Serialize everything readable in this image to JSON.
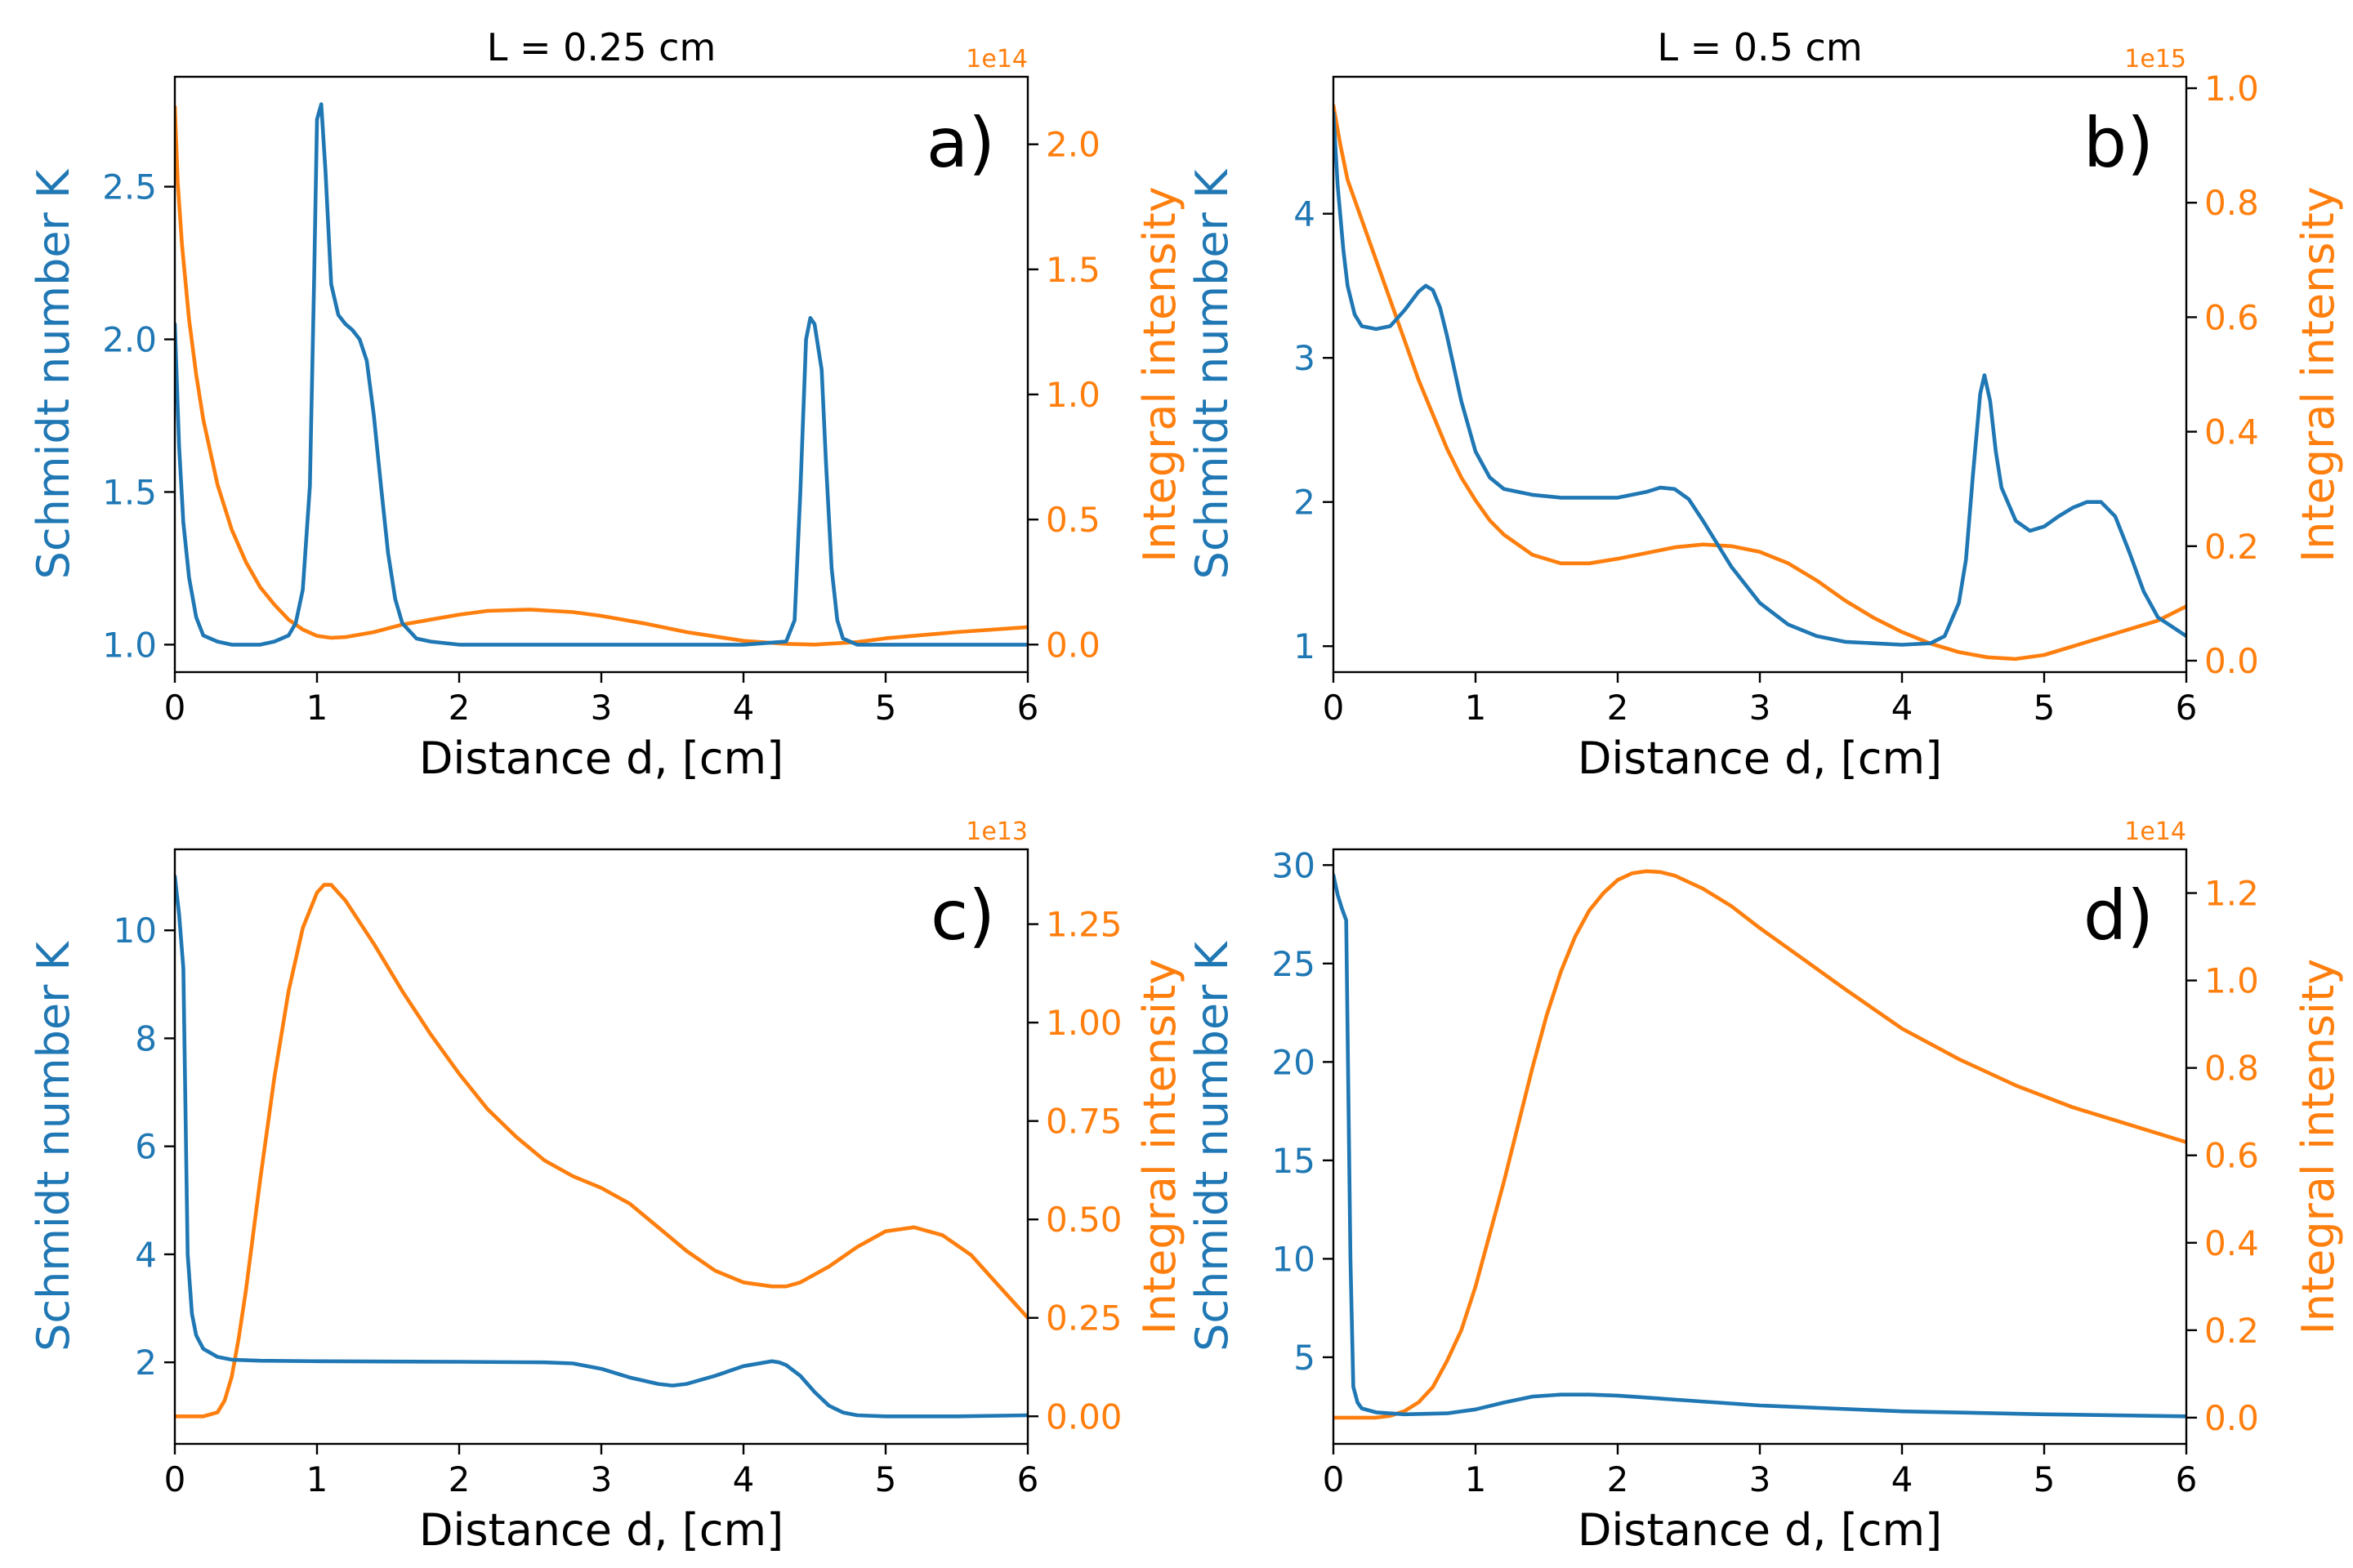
{
  "colors": {
    "schmidt": "#1f77b4",
    "intensity": "#ff7f0e",
    "axis": "#000000"
  },
  "chart_data": [
    {
      "type": "line",
      "panel_label": "a)",
      "title": "L = 0.25 cm",
      "xlabel": "Distance d, [cm]",
      "ylabel_left": "Schmidt number K",
      "ylabel_right": "Integral intensity",
      "right_multiplier": "1e14",
      "xlim": [
        0,
        6
      ],
      "ylim_left": [
        0.91,
        2.86
      ],
      "ylim_right": [
        -0.11,
        2.27
      ],
      "xticks": [
        0,
        1,
        2,
        3,
        4,
        5,
        6
      ],
      "xtick_labels": [
        "0",
        "1",
        "2",
        "3",
        "4",
        "5",
        "6"
      ],
      "yticks_left": [
        1.0,
        1.5,
        2.0,
        2.5
      ],
      "ytick_labels_left": [
        "1.0",
        "1.5",
        "2.0",
        "2.5"
      ],
      "yticks_right": [
        0.0,
        0.5,
        1.0,
        1.5,
        2.0
      ],
      "ytick_labels_right": [
        "0.0",
        "0.5",
        "1.0",
        "1.5",
        "2.0"
      ],
      "series": [
        {
          "name": "Schmidt number K",
          "axis": "left",
          "x": [
            0,
            0.03,
            0.06,
            0.1,
            0.15,
            0.2,
            0.3,
            0.4,
            0.5,
            0.6,
            0.7,
            0.8,
            0.85,
            0.9,
            0.95,
            0.98,
            1.0,
            1.03,
            1.06,
            1.1,
            1.15,
            1.2,
            1.25,
            1.3,
            1.35,
            1.4,
            1.45,
            1.5,
            1.55,
            1.6,
            1.7,
            1.8,
            2.0,
            3.0,
            4.0,
            4.3,
            4.36,
            4.4,
            4.44,
            4.47,
            4.5,
            4.55,
            4.58,
            4.62,
            4.66,
            4.7,
            4.8,
            5.0,
            6.0
          ],
          "y": [
            2.05,
            1.65,
            1.4,
            1.22,
            1.09,
            1.03,
            1.01,
            1.0,
            1.0,
            1.0,
            1.01,
            1.03,
            1.07,
            1.18,
            1.52,
            2.2,
            2.72,
            2.77,
            2.55,
            2.18,
            2.08,
            2.05,
            2.03,
            2.0,
            1.93,
            1.75,
            1.52,
            1.3,
            1.15,
            1.07,
            1.02,
            1.01,
            1.0,
            1.0,
            1.0,
            1.01,
            1.08,
            1.5,
            2.0,
            2.07,
            2.05,
            1.9,
            1.6,
            1.25,
            1.08,
            1.02,
            1.0,
            1.0,
            1.0
          ]
        },
        {
          "name": "Integral intensity",
          "axis": "right",
          "x": [
            0,
            0.02,
            0.05,
            0.1,
            0.15,
            0.2,
            0.3,
            0.4,
            0.5,
            0.6,
            0.7,
            0.8,
            0.9,
            1.0,
            1.1,
            1.2,
            1.4,
            1.6,
            1.8,
            2.0,
            2.2,
            2.5,
            2.8,
            3.0,
            3.3,
            3.6,
            4.0,
            4.3,
            4.5,
            4.8,
            5.0,
            5.5,
            6.0
          ],
          "y": [
            2.15,
            1.85,
            1.6,
            1.3,
            1.08,
            0.9,
            0.64,
            0.46,
            0.33,
            0.23,
            0.16,
            0.1,
            0.06,
            0.035,
            0.027,
            0.03,
            0.05,
            0.08,
            0.1,
            0.12,
            0.135,
            0.14,
            0.13,
            0.115,
            0.085,
            0.05,
            0.015,
            0.003,
            0.0,
            0.01,
            0.025,
            0.05,
            0.07
          ]
        }
      ]
    },
    {
      "type": "line",
      "panel_label": "b)",
      "title": "L = 0.5 cm",
      "xlabel": "Distance d, [cm]",
      "ylabel_left": "Schmidt number K",
      "ylabel_right": "Integral intensity",
      "right_multiplier": "1e15",
      "xlim": [
        0,
        6
      ],
      "ylim_left": [
        0.82,
        4.95
      ],
      "ylim_right": [
        -0.02,
        1.02
      ],
      "xticks": [
        0,
        1,
        2,
        3,
        4,
        5,
        6
      ],
      "xtick_labels": [
        "0",
        "1",
        "2",
        "3",
        "4",
        "5",
        "6"
      ],
      "yticks_left": [
        1,
        2,
        3,
        4
      ],
      "ytick_labels_left": [
        "1",
        "2",
        "3",
        "4"
      ],
      "yticks_right": [
        0.0,
        0.2,
        0.4,
        0.6,
        0.8,
        1.0
      ],
      "ytick_labels_right": [
        "0.0",
        "0.2",
        "0.4",
        "0.6",
        "0.8",
        "1.0"
      ],
      "series": [
        {
          "name": "Schmidt number K",
          "axis": "left",
          "x": [
            0,
            0.03,
            0.07,
            0.1,
            0.15,
            0.2,
            0.3,
            0.4,
            0.5,
            0.6,
            0.65,
            0.7,
            0.75,
            0.8,
            0.9,
            1.0,
            1.1,
            1.2,
            1.4,
            1.6,
            1.8,
            2.0,
            2.2,
            2.3,
            2.4,
            2.5,
            2.6,
            2.8,
            3.0,
            3.2,
            3.4,
            3.6,
            3.8,
            4.0,
            4.2,
            4.3,
            4.4,
            4.45,
            4.5,
            4.55,
            4.58,
            4.62,
            4.66,
            4.7,
            4.8,
            4.9,
            5.0,
            5.1,
            5.2,
            5.3,
            5.4,
            5.5,
            5.6,
            5.7,
            5.8,
            6.0
          ],
          "y": [
            4.7,
            4.2,
            3.75,
            3.5,
            3.3,
            3.22,
            3.2,
            3.22,
            3.33,
            3.46,
            3.5,
            3.47,
            3.35,
            3.15,
            2.7,
            2.35,
            2.17,
            2.09,
            2.05,
            2.03,
            2.03,
            2.03,
            2.07,
            2.1,
            2.09,
            2.02,
            1.87,
            1.55,
            1.3,
            1.15,
            1.07,
            1.03,
            1.02,
            1.01,
            1.02,
            1.07,
            1.3,
            1.6,
            2.2,
            2.75,
            2.88,
            2.7,
            2.35,
            2.1,
            1.87,
            1.8,
            1.83,
            1.9,
            1.96,
            2.0,
            2.0,
            1.9,
            1.65,
            1.38,
            1.2,
            1.07
          ]
        },
        {
          "name": "Integral intensity",
          "axis": "right",
          "x": [
            0,
            0.05,
            0.1,
            0.2,
            0.3,
            0.4,
            0.5,
            0.6,
            0.7,
            0.8,
            0.9,
            1.0,
            1.1,
            1.2,
            1.4,
            1.6,
            1.8,
            2.0,
            2.2,
            2.4,
            2.6,
            2.8,
            3.0,
            3.2,
            3.4,
            3.6,
            3.8,
            4.0,
            4.2,
            4.4,
            4.6,
            4.8,
            5.0,
            5.2,
            5.4,
            5.6,
            5.8,
            6.0
          ],
          "y": [
            0.97,
            0.9,
            0.84,
            0.77,
            0.7,
            0.63,
            0.56,
            0.49,
            0.43,
            0.37,
            0.32,
            0.28,
            0.245,
            0.22,
            0.185,
            0.17,
            0.17,
            0.178,
            0.188,
            0.198,
            0.203,
            0.2,
            0.19,
            0.17,
            0.14,
            0.105,
            0.075,
            0.05,
            0.03,
            0.015,
            0.006,
            0.003,
            0.01,
            0.025,
            0.04,
            0.055,
            0.07,
            0.095
          ]
        }
      ]
    },
    {
      "type": "line",
      "panel_label": "c)",
      "title": "",
      "xlabel": "Distance d, [cm]",
      "ylabel_left": "Schmidt number K",
      "ylabel_right": "Integral intensity",
      "right_multiplier": "1e13",
      "xlim": [
        0,
        6
      ],
      "ylim_left": [
        0.49,
        11.5
      ],
      "ylim_right": [
        -0.07,
        1.44
      ],
      "xticks": [
        0,
        1,
        2,
        3,
        4,
        5,
        6
      ],
      "xtick_labels": [
        "0",
        "1",
        "2",
        "3",
        "4",
        "5",
        "6"
      ],
      "yticks_left": [
        2,
        4,
        6,
        8,
        10
      ],
      "ytick_labels_left": [
        "2",
        "4",
        "6",
        "8",
        "10"
      ],
      "yticks_right": [
        0.0,
        0.25,
        0.5,
        0.75,
        1.0,
        1.25
      ],
      "ytick_labels_right": [
        "0.00",
        "0.25",
        "0.50",
        "0.75",
        "1.00",
        "1.25"
      ],
      "series": [
        {
          "name": "Schmidt number K",
          "axis": "left",
          "x": [
            0,
            0.03,
            0.06,
            0.09,
            0.12,
            0.15,
            0.2,
            0.3,
            0.4,
            0.6,
            1.0,
            2.0,
            2.6,
            2.8,
            3.0,
            3.2,
            3.4,
            3.5,
            3.6,
            3.8,
            4.0,
            4.2,
            4.25,
            4.3,
            4.4,
            4.5,
            4.6,
            4.7,
            4.8,
            5.0,
            5.5,
            6.0
          ],
          "y": [
            11.0,
            10.3,
            9.3,
            4.0,
            2.9,
            2.5,
            2.25,
            2.1,
            2.05,
            2.03,
            2.02,
            2.01,
            2.0,
            1.98,
            1.88,
            1.72,
            1.6,
            1.57,
            1.6,
            1.75,
            1.93,
            2.02,
            2.0,
            1.95,
            1.75,
            1.45,
            1.2,
            1.07,
            1.02,
            1.0,
            1.0,
            1.02
          ]
        },
        {
          "name": "Integral intensity",
          "axis": "right",
          "x": [
            0,
            0.1,
            0.2,
            0.3,
            0.35,
            0.4,
            0.45,
            0.5,
            0.6,
            0.7,
            0.8,
            0.9,
            1.0,
            1.05,
            1.1,
            1.2,
            1.4,
            1.6,
            1.8,
            2.0,
            2.2,
            2.4,
            2.6,
            2.8,
            3.0,
            3.2,
            3.4,
            3.6,
            3.8,
            4.0,
            4.2,
            4.3,
            4.4,
            4.6,
            4.8,
            5.0,
            5.2,
            5.4,
            5.6,
            5.8,
            6.0
          ],
          "y": [
            0.0,
            0.0,
            0.0,
            0.01,
            0.04,
            0.1,
            0.2,
            0.32,
            0.6,
            0.86,
            1.08,
            1.24,
            1.33,
            1.35,
            1.35,
            1.31,
            1.2,
            1.08,
            0.97,
            0.87,
            0.78,
            0.71,
            0.65,
            0.61,
            0.58,
            0.54,
            0.48,
            0.42,
            0.37,
            0.34,
            0.33,
            0.33,
            0.34,
            0.38,
            0.43,
            0.47,
            0.48,
            0.46,
            0.41,
            0.33,
            0.25
          ]
        }
      ]
    },
    {
      "type": "line",
      "panel_label": "d)",
      "title": "",
      "xlabel": "Distance d, [cm]",
      "ylabel_left": "Schmidt number K",
      "ylabel_right": "Integral intensity",
      "right_multiplier": "1e14",
      "xlim": [
        0,
        6
      ],
      "ylim_left": [
        0.6,
        30.8
      ],
      "ylim_right": [
        -0.06,
        1.3
      ],
      "xticks": [
        0,
        1,
        2,
        3,
        4,
        5,
        6
      ],
      "xtick_labels": [
        "0",
        "1",
        "2",
        "3",
        "4",
        "5",
        "6"
      ],
      "yticks_left": [
        5,
        10,
        15,
        20,
        25,
        30
      ],
      "ytick_labels_left": [
        "5",
        "10",
        "15",
        "20",
        "25",
        "30"
      ],
      "yticks_right": [
        0.0,
        0.2,
        0.4,
        0.6,
        0.8,
        1.0,
        1.2
      ],
      "ytick_labels_right": [
        "0.0",
        "0.2",
        "0.4",
        "0.6",
        "0.8",
        "1.0",
        "1.2"
      ],
      "series": [
        {
          "name": "Schmidt number K",
          "axis": "left",
          "x": [
            0,
            0.03,
            0.06,
            0.09,
            0.12,
            0.14,
            0.17,
            0.2,
            0.3,
            0.5,
            0.8,
            1.0,
            1.2,
            1.4,
            1.6,
            1.8,
            2.0,
            2.5,
            3.0,
            4.0,
            5.0,
            6.0
          ],
          "y": [
            29.5,
            28.5,
            27.8,
            27.2,
            10.0,
            3.5,
            2.7,
            2.4,
            2.2,
            2.1,
            2.15,
            2.35,
            2.7,
            3.0,
            3.1,
            3.1,
            3.05,
            2.8,
            2.55,
            2.25,
            2.1,
            2.0
          ]
        },
        {
          "name": "Integral intensity",
          "axis": "right",
          "x": [
            0,
            0.2,
            0.3,
            0.4,
            0.5,
            0.6,
            0.7,
            0.8,
            0.9,
            1.0,
            1.1,
            1.2,
            1.3,
            1.4,
            1.5,
            1.6,
            1.7,
            1.8,
            1.9,
            2.0,
            2.1,
            2.2,
            2.3,
            2.4,
            2.6,
            2.8,
            3.0,
            3.3,
            3.6,
            4.0,
            4.4,
            4.8,
            5.2,
            5.6,
            6.0
          ],
          "y": [
            0.0,
            0.0,
            0.0,
            0.004,
            0.015,
            0.035,
            0.07,
            0.13,
            0.2,
            0.3,
            0.42,
            0.54,
            0.67,
            0.8,
            0.92,
            1.02,
            1.1,
            1.16,
            1.2,
            1.23,
            1.245,
            1.25,
            1.248,
            1.24,
            1.21,
            1.17,
            1.12,
            1.05,
            0.98,
            0.89,
            0.82,
            0.76,
            0.71,
            0.67,
            0.63
          ]
        }
      ]
    }
  ]
}
